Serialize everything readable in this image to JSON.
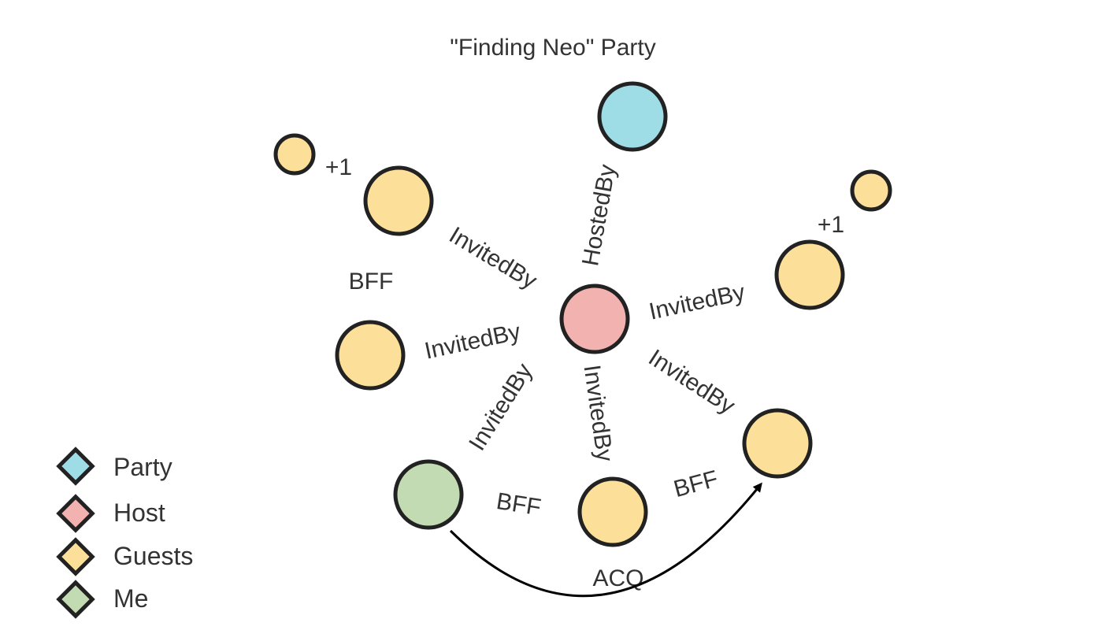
{
  "title": "\"Finding Neo\" Party",
  "colors": {
    "party": "#9edce6",
    "host": "#f2b2b0",
    "guest": "#fce09a",
    "me": "#c3dbb2",
    "stroke": "#222222"
  },
  "nodes": [
    {
      "id": "party",
      "category": "Party"
    },
    {
      "id": "host",
      "category": "Host"
    },
    {
      "id": "guest-upper-left",
      "category": "Guests"
    },
    {
      "id": "guest-upper-left-plus-one",
      "category": "Guests"
    },
    {
      "id": "guest-left",
      "category": "Guests"
    },
    {
      "id": "guest-right",
      "category": "Guests"
    },
    {
      "id": "guest-right-plus-one",
      "category": "Guests"
    },
    {
      "id": "guest-bottom-right",
      "category": "Guests"
    },
    {
      "id": "guest-bottom-middle",
      "category": "Guests"
    },
    {
      "id": "me",
      "category": "Me"
    }
  ],
  "edge_labels": {
    "hosted_by": "HostedBy",
    "invited_by": "InvitedBy",
    "plus_one": "+1",
    "bff": "BFF",
    "acq": "ACQ"
  },
  "legend": {
    "party": "Party",
    "host": "Host",
    "guests": "Guests",
    "me": "Me"
  }
}
